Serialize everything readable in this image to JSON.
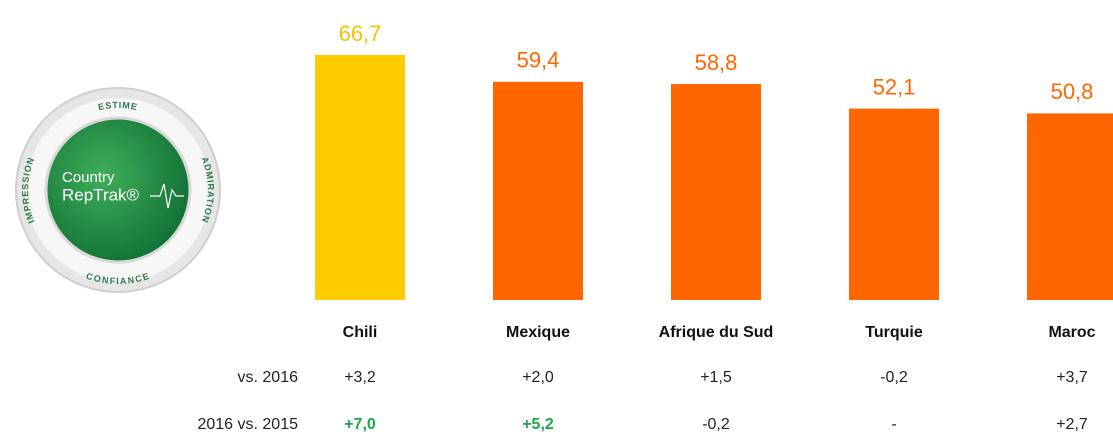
{
  "chart_data": {
    "type": "bar",
    "categories": [
      "Chili",
      "Mexique",
      "Afrique du Sud",
      "Turquie",
      "Maroc"
    ],
    "values": [
      66.7,
      59.4,
      58.8,
      52.1,
      50.8
    ],
    "value_labels": [
      "66,7",
      "59,4",
      "58,8",
      "52,1",
      "50,8"
    ],
    "colors": [
      "#FFCC00",
      "#FF6600",
      "#FF6600",
      "#FF6600",
      "#FF6600"
    ],
    "rows": [
      {
        "label": "vs. 2016",
        "values": [
          "+3,2",
          "+2,0",
          "+1,5",
          "-0,2",
          "+3,7"
        ],
        "colors": [
          "#222222",
          "#222222",
          "#222222",
          "#222222",
          "#222222"
        ]
      },
      {
        "label": "2016 vs. 2015",
        "values": [
          "+7,0",
          "+5,2",
          "-0,2",
          "-",
          "+2,7"
        ],
        "colors": [
          "#1fa64a",
          "#1fa64a",
          "#222222",
          "#222222",
          "#222222"
        ]
      }
    ]
  },
  "logo": {
    "top": "ESTIME",
    "right": "ADMIRATION",
    "bottom": "CONFIANCE",
    "left": "IMPRESSION",
    "line1": "Country",
    "line2": "RepTrak®"
  }
}
